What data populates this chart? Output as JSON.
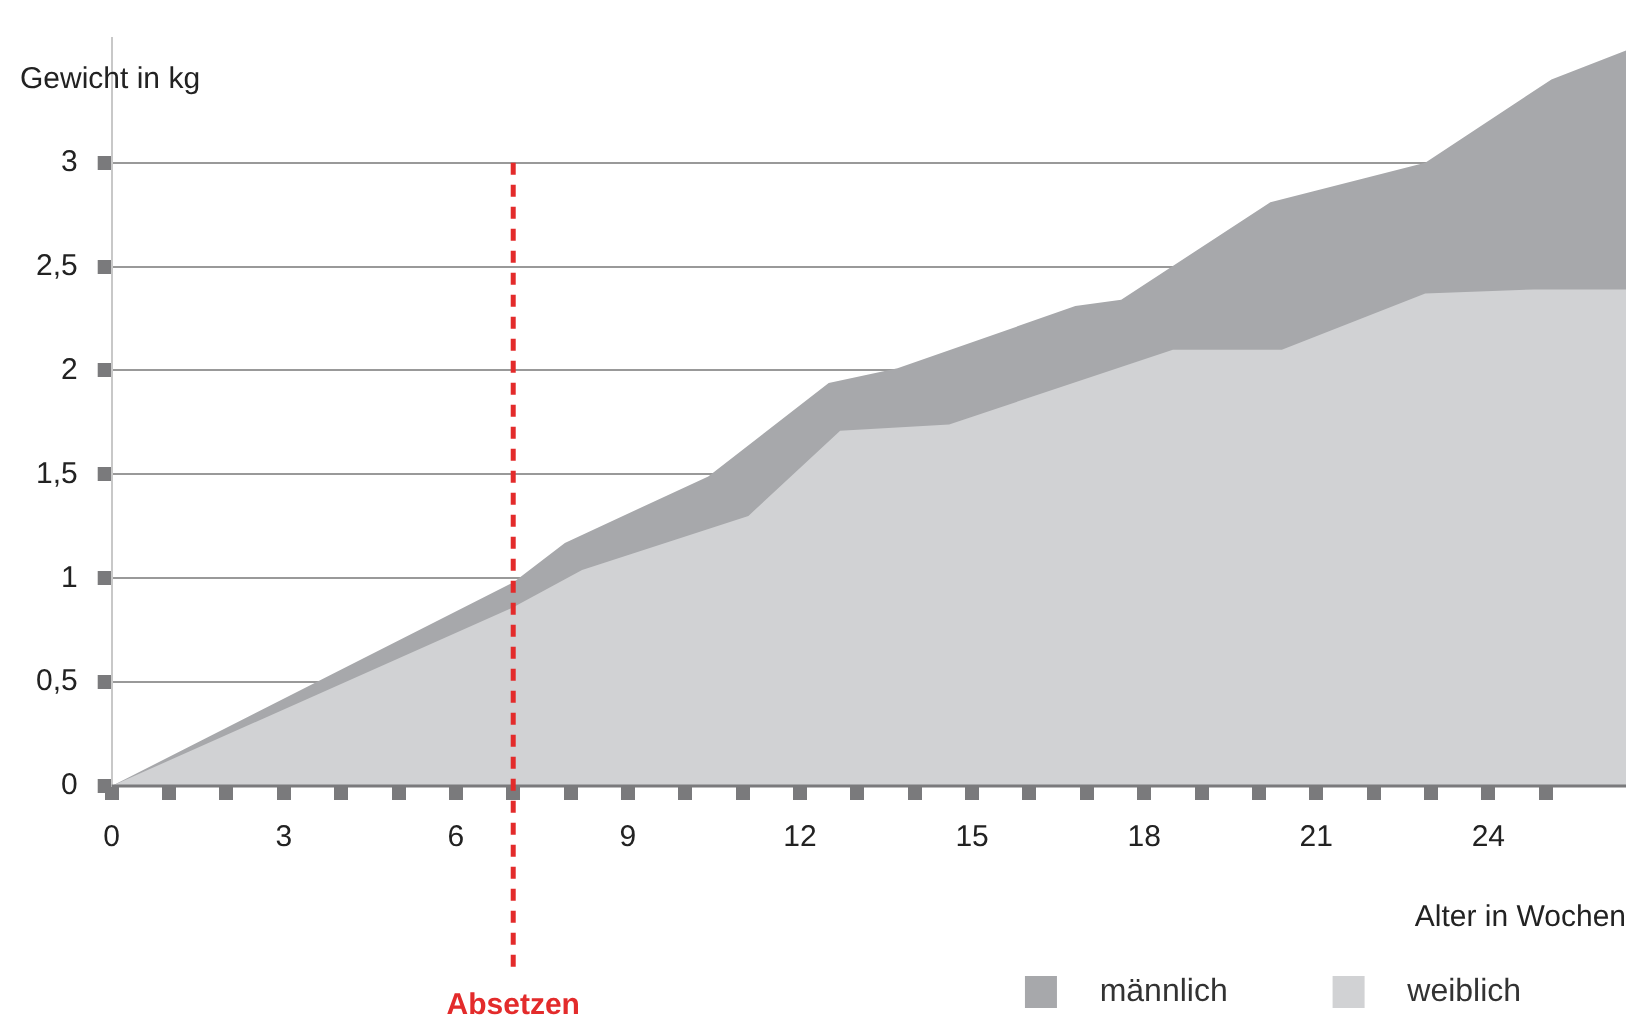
{
  "chart_data": {
    "type": "area",
    "xlabel": "Alter in Wochen",
    "ylabel": "Gewicht in kg",
    "series": [
      {
        "name": "männlich",
        "color": "#a7a8ab",
        "x": [
          0,
          7,
          7.9,
          10.4,
          12.5,
          13.7,
          16.8,
          17.6,
          20.2,
          22.9,
          25.1,
          26.4
        ],
        "values": [
          0,
          0.98,
          1.17,
          1.49,
          1.94,
          2.01,
          2.31,
          2.34,
          2.81,
          3.0,
          3.4,
          3.54
        ]
      },
      {
        "name": "weiblich",
        "color": "#d1d2d4",
        "x": [
          0,
          7,
          8.2,
          11.1,
          12.7,
          14.6,
          18.5,
          20.4,
          22.9,
          24.8,
          26.4
        ],
        "values": [
          0,
          0.86,
          1.04,
          1.3,
          1.71,
          1.74,
          2.1,
          2.1,
          2.37,
          2.39,
          2.39
        ]
      }
    ],
    "xlim": [
      0,
      26.4
    ],
    "ylim": [
      0,
      3.6
    ],
    "xticks": [
      0,
      {
        "value": 1,
        "label": null
      },
      {
        "value": 2,
        "label": null
      },
      3,
      {
        "value": 4,
        "label": null
      },
      {
        "value": 5,
        "label": null
      },
      6,
      {
        "value": 7,
        "label": null
      },
      {
        "value": 8,
        "label": null
      },
      9,
      {
        "value": 10,
        "label": null
      },
      {
        "value": 11,
        "label": null
      },
      12,
      {
        "value": 13,
        "label": null
      },
      {
        "value": 14,
        "label": null
      },
      15,
      {
        "value": 16,
        "label": null
      },
      {
        "value": 17,
        "label": null
      },
      18,
      {
        "value": 19,
        "label": null
      },
      {
        "value": 20,
        "label": null
      },
      21,
      {
        "value": 22,
        "label": null
      },
      {
        "value": 23,
        "label": null
      },
      24,
      {
        "value": 25,
        "label": null
      }
    ],
    "yticks": [
      0,
      {
        "value": 0.5,
        "label": "0,5"
      },
      1,
      {
        "value": 1.5,
        "label": "1,5"
      },
      2,
      {
        "value": 2.5,
        "label": "2,5"
      },
      3
    ],
    "grid": "y",
    "legend": "bottom right",
    "ref_lines": [
      {
        "axis": "x",
        "value": 7,
        "label": "Absetzen",
        "color": "#e32b2b",
        "line_style": "dashed"
      }
    ]
  }
}
